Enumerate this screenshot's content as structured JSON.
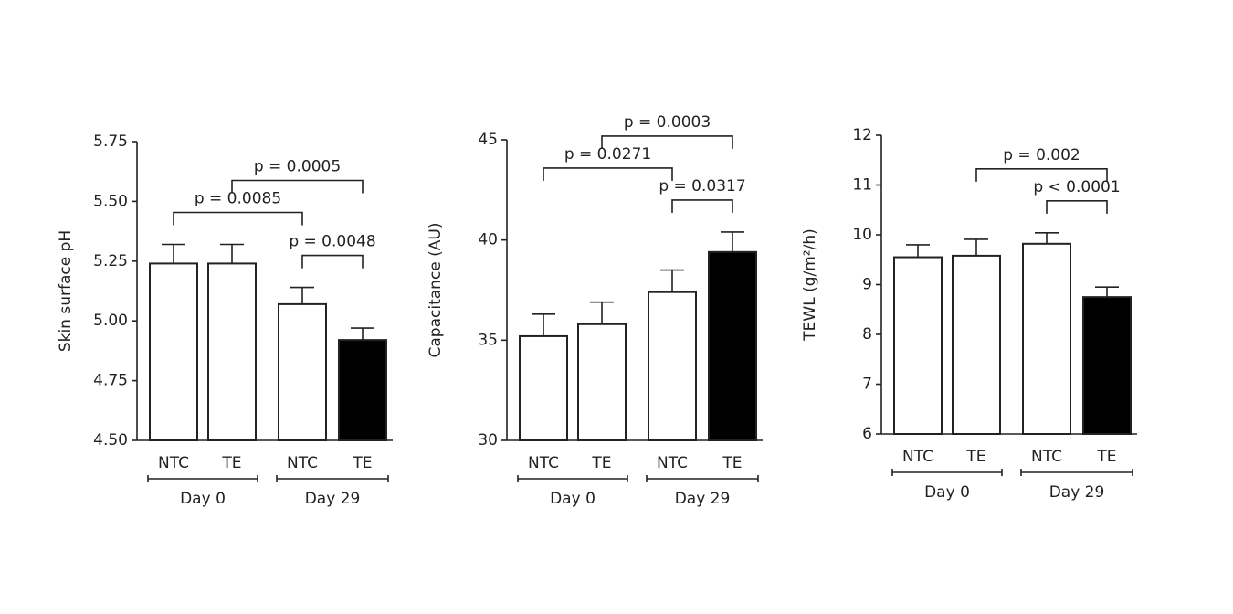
{
  "chart_data": [
    {
      "type": "bar",
      "y_label": "Skin surface pH",
      "categories": [
        "NTC",
        "TE",
        "NTC",
        "TE"
      ],
      "groups": [
        "Day 0",
        "Day 29"
      ],
      "values": [
        5.24,
        5.24,
        5.07,
        4.92
      ],
      "errors": [
        0.08,
        0.08,
        0.07,
        0.05
      ],
      "colors": [
        "#ffffff",
        "#ffffff",
        "#ffffff",
        "#000000"
      ],
      "ylim": [
        4.5,
        5.75
      ],
      "yticks": [
        {
          "value": 4.5,
          "label": "4.50"
        },
        4.75,
        {
          "value": 5,
          "label": "5.00"
        },
        5.25,
        {
          "value": 5.5,
          "label": "5.50"
        },
        5.75
      ],
      "comparisons": [
        {
          "from": 2,
          "to": 3,
          "label": "p = 0.0048"
        },
        {
          "from": 0,
          "to": 2,
          "label": "p = 0.0085"
        },
        {
          "from": 1,
          "to": 3,
          "label": "p = 0.0005"
        }
      ]
    },
    {
      "type": "bar",
      "y_label": "Capacitance (AU)",
      "categories": [
        "NTC",
        "TE",
        "NTC",
        "TE"
      ],
      "groups": [
        "Day 0",
        "Day 29"
      ],
      "values": [
        35.2,
        35.8,
        37.4,
        39.4
      ],
      "errors": [
        1.1,
        1.1,
        1.1,
        1.0
      ],
      "colors": [
        "#ffffff",
        "#ffffff",
        "#ffffff",
        "#000000"
      ],
      "ylim": [
        30,
        45
      ],
      "yticks": [
        30,
        35,
        40,
        45
      ],
      "comparisons": [
        {
          "from": 2,
          "to": 3,
          "label": "p = 0.0317"
        },
        {
          "from": 0,
          "to": 2,
          "label": "p = 0.0271"
        },
        {
          "from": 1,
          "to": 3,
          "label": "p = 0.0003"
        }
      ]
    },
    {
      "type": "bar",
      "y_label": "TEWL (g/m²/h)",
      "categories": [
        "NTC",
        "TE",
        "NTC",
        "TE"
      ],
      "groups": [
        "Day 0",
        "Day 29"
      ],
      "values": [
        9.55,
        9.58,
        9.82,
        8.75
      ],
      "errors": [
        0.25,
        0.33,
        0.22,
        0.2
      ],
      "colors": [
        "#ffffff",
        "#ffffff",
        "#ffffff",
        "#000000"
      ],
      "ylim": [
        6,
        12
      ],
      "yticks": [
        6,
        7,
        8,
        9,
        10,
        11,
        12
      ],
      "comparisons": [
        {
          "from": 2,
          "to": 3,
          "label": "p < 0.0001"
        },
        {
          "from": 1,
          "to": 3,
          "label": "p = 0.002"
        }
      ]
    }
  ]
}
